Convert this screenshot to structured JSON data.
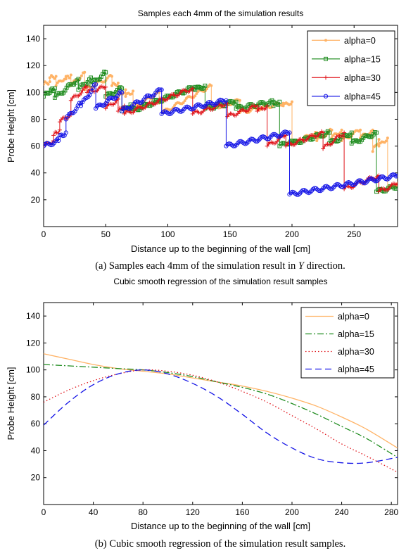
{
  "chart_data": [
    {
      "type": "line",
      "title": "Samples each 4mm of the simulation results",
      "xlabel": "Distance up to the beginning of the wall [cm]",
      "ylabel": "Probe Height [cm]",
      "xlim": [
        0,
        285
      ],
      "ylim": [
        0,
        150
      ],
      "xticks": [
        0,
        50,
        100,
        150,
        200,
        250
      ],
      "yticks": [
        20,
        40,
        60,
        80,
        100,
        120,
        140
      ],
      "grid": false,
      "legend_position": "top-right",
      "caption": {
        "prefix": "(a) Samples each 4mm of the simulation result in ",
        "math": "Y",
        "suffix": " direction."
      },
      "series": [
        {
          "name": "alpha=0",
          "color": "#ffb366",
          "marker": "dot",
          "segments": [
            {
              "x": [
                0,
                5
              ],
              "y": [
                106,
                108
              ]
            },
            {
              "x": [
                5,
                10
              ],
              "y": [
                111,
                112
              ]
            },
            {
              "x": [
                10,
                18
              ],
              "y": [
                105,
                112
              ]
            },
            {
              "x": [
                18,
                22
              ],
              "y": [
                110,
                113
              ]
            },
            {
              "x": [
                22,
                33
              ],
              "y": [
                105,
                115
              ]
            },
            {
              "x": [
                33,
                55
              ],
              "y": [
                102,
                112
              ]
            },
            {
              "x": [
                55,
                60
              ],
              "y": [
                105,
                107
              ]
            },
            {
              "x": [
                60,
                66
              ],
              "y": [
                96,
                102
              ]
            },
            {
              "x": [
                66,
                72
              ],
              "y": [
                97,
                101
              ]
            },
            {
              "x": [
                72,
                93
              ],
              "y": [
                88,
                100
              ]
            },
            {
              "x": [
                93,
                96
              ],
              "y": [
                92,
                95
              ]
            },
            {
              "x": [
                96,
                135
              ],
              "y": [
                85,
                105
              ]
            },
            {
              "x": [
                135,
                158
              ],
              "y": [
                88,
                94
              ]
            },
            {
              "x": [
                158,
                193
              ],
              "y": [
                85,
                92
              ]
            },
            {
              "x": [
                193,
                200
              ],
              "y": [
                90,
                93
              ]
            },
            {
              "x": [
                200,
                220
              ],
              "y": [
                62,
                70
              ]
            },
            {
              "x": [
                220,
                232
              ],
              "y": [
                64,
                72
              ]
            },
            {
              "x": [
                232,
                240
              ],
              "y": [
                66,
                72
              ]
            },
            {
              "x": [
                240,
                255
              ],
              "y": [
                64,
                72
              ]
            },
            {
              "x": [
                255,
                265
              ],
              "y": [
                66,
                72
              ]
            },
            {
              "x": [
                265,
                270
              ],
              "y": [
                56,
                65
              ]
            },
            {
              "x": [
                270,
                277
              ],
              "y": [
                60,
                66
              ]
            },
            {
              "x": [
                277,
                285
              ],
              "y": [
                28,
                32
              ]
            }
          ]
        },
        {
          "name": "alpha=15",
          "color": "#1f8c1f",
          "marker": "square",
          "segments": [
            {
              "x": [
                0,
                6
              ],
              "y": [
                97,
                102
              ]
            },
            {
              "x": [
                6,
                9
              ],
              "y": [
                101,
                103
              ]
            },
            {
              "x": [
                9,
                28
              ],
              "y": [
                96,
                110
              ]
            },
            {
              "x": [
                28,
                38
              ],
              "y": [
                102,
                111
              ]
            },
            {
              "x": [
                38,
                50
              ],
              "y": [
                106,
                115
              ]
            },
            {
              "x": [
                50,
                63
              ],
              "y": [
                97,
                103
              ]
            },
            {
              "x": [
                63,
                70
              ],
              "y": [
                86,
                91
              ]
            },
            {
              "x": [
                70,
                122
              ],
              "y": [
                86,
                104
              ]
            },
            {
              "x": [
                122,
                130
              ],
              "y": [
                102,
                105
              ]
            },
            {
              "x": [
                130,
                155
              ],
              "y": [
                88,
                93
              ]
            },
            {
              "x": [
                155,
                185
              ],
              "y": [
                88,
                93
              ]
            },
            {
              "x": [
                185,
                190
              ],
              "y": [
                90,
                93
              ]
            },
            {
              "x": [
                190,
                200
              ],
              "y": [
                60,
                64
              ]
            },
            {
              "x": [
                200,
                230
              ],
              "y": [
                62,
                70
              ]
            },
            {
              "x": [
                230,
                248
              ],
              "y": [
                62,
                70
              ]
            },
            {
              "x": [
                248,
                268
              ],
              "y": [
                62,
                70
              ]
            },
            {
              "x": [
                268,
                285
              ],
              "y": [
                26,
                30
              ]
            }
          ]
        },
        {
          "name": "alpha=30",
          "color": "#e0151b",
          "marker": "plus",
          "segments": [
            {
              "x": [
                0,
                8
              ],
              "y": [
                60,
                64
              ]
            },
            {
              "x": [
                8,
                13
              ],
              "y": [
                68,
                72
              ]
            },
            {
              "x": [
                13,
                22
              ],
              "y": [
                78,
                84
              ]
            },
            {
              "x": [
                22,
                35
              ],
              "y": [
                94,
                104
              ]
            },
            {
              "x": [
                35,
                50
              ],
              "y": [
                100,
                104
              ]
            },
            {
              "x": [
                50,
                60
              ],
              "y": [
                88,
                95
              ]
            },
            {
              "x": [
                60,
                65
              ],
              "y": [
                86,
                90
              ]
            },
            {
              "x": [
                65,
                120
              ],
              "y": [
                84,
                103
              ]
            },
            {
              "x": [
                120,
                148
              ],
              "y": [
                84,
                92
              ]
            },
            {
              "x": [
                148,
                172
              ],
              "y": [
                82,
                90
              ]
            },
            {
              "x": [
                172,
                180
              ],
              "y": [
                86,
                90
              ]
            },
            {
              "x": [
                180,
                195
              ],
              "y": [
                60,
                68
              ]
            },
            {
              "x": [
                195,
                225
              ],
              "y": [
                60,
                70
              ]
            },
            {
              "x": [
                225,
                242
              ],
              "y": [
                58,
                70
              ]
            },
            {
              "x": [
                242,
                270
              ],
              "y": [
                28,
                38
              ]
            },
            {
              "x": [
                270,
                285
              ],
              "y": [
                26,
                32
              ]
            }
          ]
        },
        {
          "name": "alpha=45",
          "color": "#1414e6",
          "marker": "circle",
          "segments": [
            {
              "x": [
                0,
                12
              ],
              "y": [
                60,
                64
              ]
            },
            {
              "x": [
                12,
                18
              ],
              "y": [
                66,
                70
              ]
            },
            {
              "x": [
                18,
                30
              ],
              "y": [
                80,
                92
              ]
            },
            {
              "x": [
                30,
                42
              ],
              "y": [
                90,
                106
              ]
            },
            {
              "x": [
                42,
                63
              ],
              "y": [
                88,
                100
              ]
            },
            {
              "x": [
                63,
                95
              ],
              "y": [
                86,
                102
              ]
            },
            {
              "x": [
                95,
                147
              ],
              "y": [
                84,
                94
              ]
            },
            {
              "x": [
                147,
                198
              ],
              "y": [
                60,
                70
              ]
            },
            {
              "x": [
                198,
                285
              ],
              "y": [
                24,
                38
              ]
            }
          ]
        }
      ]
    },
    {
      "type": "line",
      "title": "Cubic smooth regression of the simulation result samples",
      "xlabel": "Distance up to the beginning of the wall [cm]",
      "ylabel": "Probe Height [cm]",
      "xlim": [
        0,
        285
      ],
      "ylim": [
        0,
        150
      ],
      "xticks": [
        0,
        40,
        80,
        120,
        160,
        200,
        240,
        280
      ],
      "yticks": [
        20,
        40,
        60,
        80,
        100,
        120,
        140
      ],
      "grid": false,
      "legend_position": "top-right",
      "caption": {
        "prefix": "(b) Cubic smooth regression of the simulation result samples.",
        "math": "",
        "suffix": ""
      },
      "series": [
        {
          "name": "alpha=0",
          "color": "#ffb366",
          "dash": "solid",
          "x": [
            0,
            20,
            40,
            60,
            80,
            100,
            120,
            140,
            160,
            180,
            200,
            220,
            240,
            260,
            285
          ],
          "y": [
            112,
            108,
            104,
            101,
            99,
            97,
            94,
            91,
            88,
            84,
            79,
            73,
            65,
            56,
            42
          ]
        },
        {
          "name": "alpha=15",
          "color": "#1f8c1f",
          "dash": "dashdot",
          "x": [
            0,
            20,
            40,
            60,
            80,
            100,
            120,
            140,
            160,
            180,
            200,
            220,
            240,
            260,
            285
          ],
          "y": [
            104,
            103,
            102,
            101,
            100,
            98,
            95,
            91,
            87,
            82,
            75,
            67,
            58,
            49,
            35
          ]
        },
        {
          "name": "alpha=30",
          "color": "#e0151b",
          "dash": "dotted",
          "x": [
            0,
            20,
            40,
            60,
            80,
            100,
            120,
            140,
            160,
            180,
            200,
            220,
            240,
            260,
            285
          ],
          "y": [
            76,
            85,
            92,
            97,
            100,
            99,
            96,
            91,
            84,
            76,
            66,
            56,
            45,
            36,
            24
          ]
        },
        {
          "name": "alpha=45",
          "color": "#1414e6",
          "dash": "dashed",
          "x": [
            0,
            20,
            40,
            60,
            80,
            100,
            120,
            140,
            160,
            180,
            200,
            220,
            240,
            260,
            285
          ],
          "y": [
            59,
            76,
            89,
            97,
            100,
            97,
            90,
            80,
            67,
            53,
            42,
            34,
            31,
            31,
            35
          ]
        }
      ]
    }
  ]
}
